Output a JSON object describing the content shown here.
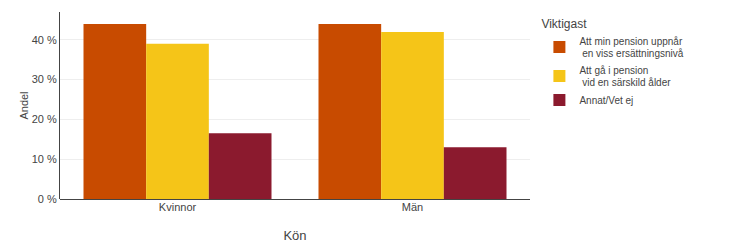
{
  "chart_data": {
    "type": "bar",
    "title": "Viktigast",
    "xlabel": "Kön",
    "ylabel": "Andel",
    "categories": [
      "Kvinnor",
      "Män"
    ],
    "series": [
      {
        "name": "Att min pension uppnår\n en viss ersättningsnivå",
        "color": "#C84B00",
        "values": [
          44,
          44
        ]
      },
      {
        "name": "Att gå i pension\n vid en särskild ålder",
        "color": "#F5C518",
        "values": [
          39,
          42
        ]
      },
      {
        "name": "Annat/Vet ej",
        "color": "#8B1A2E",
        "values": [
          16.5,
          13
        ]
      }
    ],
    "ylim": [
      0,
      47
    ],
    "yticks": [
      {
        "value": 0,
        "label": "0 %"
      },
      {
        "value": 10,
        "label": "10 %"
      },
      {
        "value": 20,
        "label": "20 %"
      },
      {
        "value": 30,
        "label": "30 %"
      },
      {
        "value": 40,
        "label": "40 %"
      }
    ],
    "grid": true,
    "legend": "right"
  }
}
